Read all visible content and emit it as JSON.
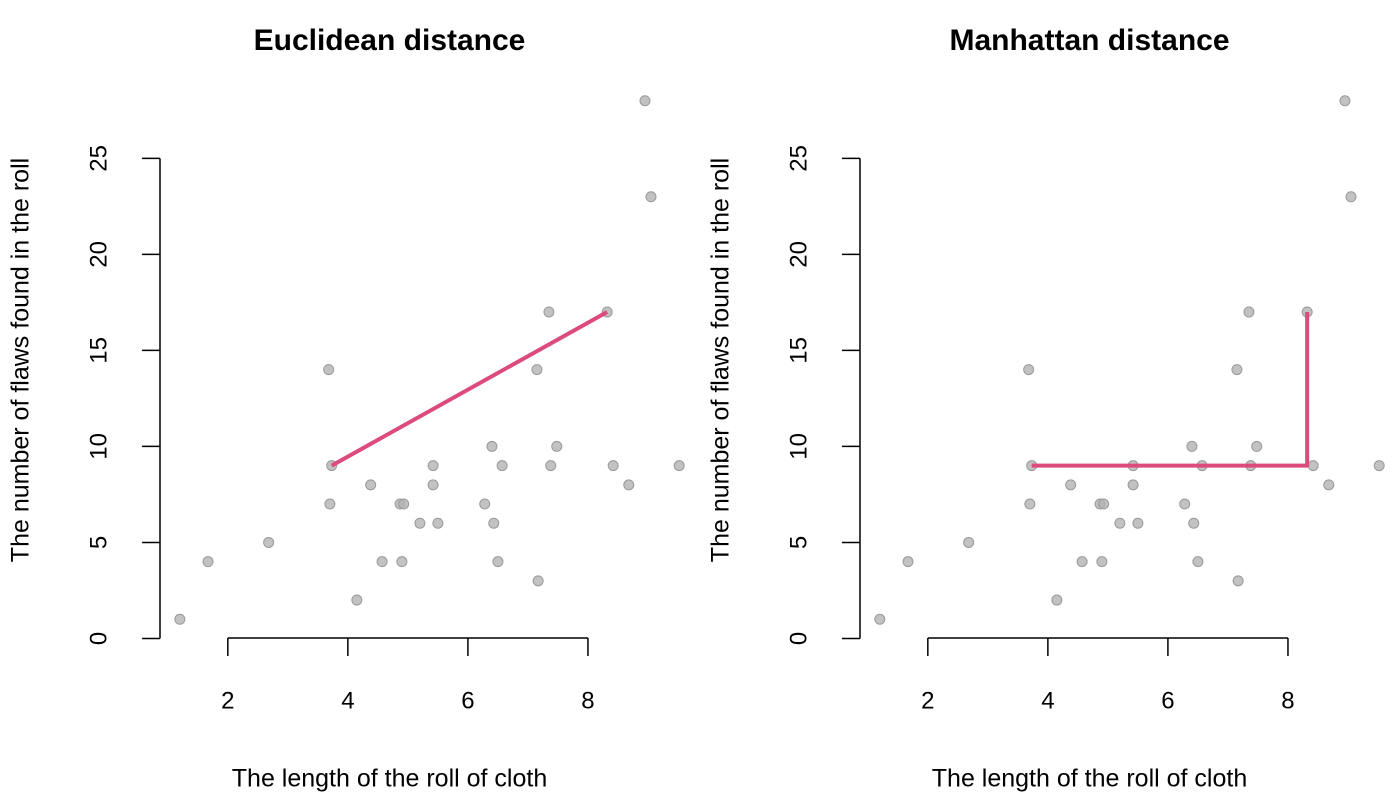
{
  "chart_data": [
    {
      "type": "scatter",
      "title": "Euclidean distance",
      "x_label": "The length of the roll of cloth",
      "y_label": "The number of flaws found in the roll",
      "x": [
        1.2,
        1.67,
        2.68,
        3.68,
        3.7,
        3.73,
        4.15,
        4.38,
        4.57,
        4.87,
        4.93,
        4.9,
        5.2,
        5.42,
        5.42,
        5.5,
        6.28,
        6.4,
        6.43,
        6.5,
        6.57,
        7.15,
        7.17,
        7.35,
        7.38,
        7.48,
        8.32,
        8.42,
        8.68,
        8.95,
        9.05,
        9.52
      ],
      "values": [
        1,
        4,
        5,
        14,
        7,
        9,
        2,
        8,
        4,
        7,
        7,
        4,
        6,
        9,
        8,
        6,
        7,
        10,
        6,
        4,
        9,
        14,
        3,
        17,
        9,
        10,
        17,
        9,
        8,
        28,
        23,
        9
      ],
      "color": "#b3b3b3",
      "xlim": [
        0.87,
        9.85
      ],
      "ylim": [
        -0.08,
        29.08
      ],
      "xticks": [
        2,
        4,
        6,
        8
      ],
      "yticks": [
        0,
        5,
        10,
        15,
        20,
        25
      ],
      "path": {
        "x": [
          3.73,
          8.32
        ],
        "values": [
          9,
          17
        ],
        "color": "#dd4a7e"
      }
    },
    {
      "type": "scatter",
      "title": "Manhattan distance",
      "x_label": "The length of the roll of cloth",
      "y_label": "The number of flaws found in the roll",
      "x": [
        1.2,
        1.67,
        2.68,
        3.68,
        3.7,
        3.73,
        4.15,
        4.38,
        4.57,
        4.87,
        4.93,
        4.9,
        5.2,
        5.42,
        5.42,
        5.5,
        6.28,
        6.4,
        6.43,
        6.5,
        6.57,
        7.15,
        7.17,
        7.35,
        7.38,
        7.48,
        8.32,
        8.42,
        8.68,
        8.95,
        9.05,
        9.52
      ],
      "values": [
        1,
        4,
        5,
        14,
        7,
        9,
        2,
        8,
        4,
        7,
        7,
        4,
        6,
        9,
        8,
        6,
        7,
        10,
        6,
        4,
        9,
        14,
        3,
        17,
        9,
        10,
        17,
        9,
        8,
        28,
        23,
        9
      ],
      "color": "#b3b3b3",
      "xlim": [
        0.87,
        9.85
      ],
      "ylim": [
        -0.08,
        29.08
      ],
      "xticks": [
        2,
        4,
        6,
        8
      ],
      "yticks": [
        0,
        5,
        10,
        15,
        20,
        25
      ],
      "path": {
        "x": [
          3.73,
          8.32,
          8.32
        ],
        "values": [
          9,
          9,
          17
        ],
        "color": "#dd4a7e"
      }
    }
  ]
}
